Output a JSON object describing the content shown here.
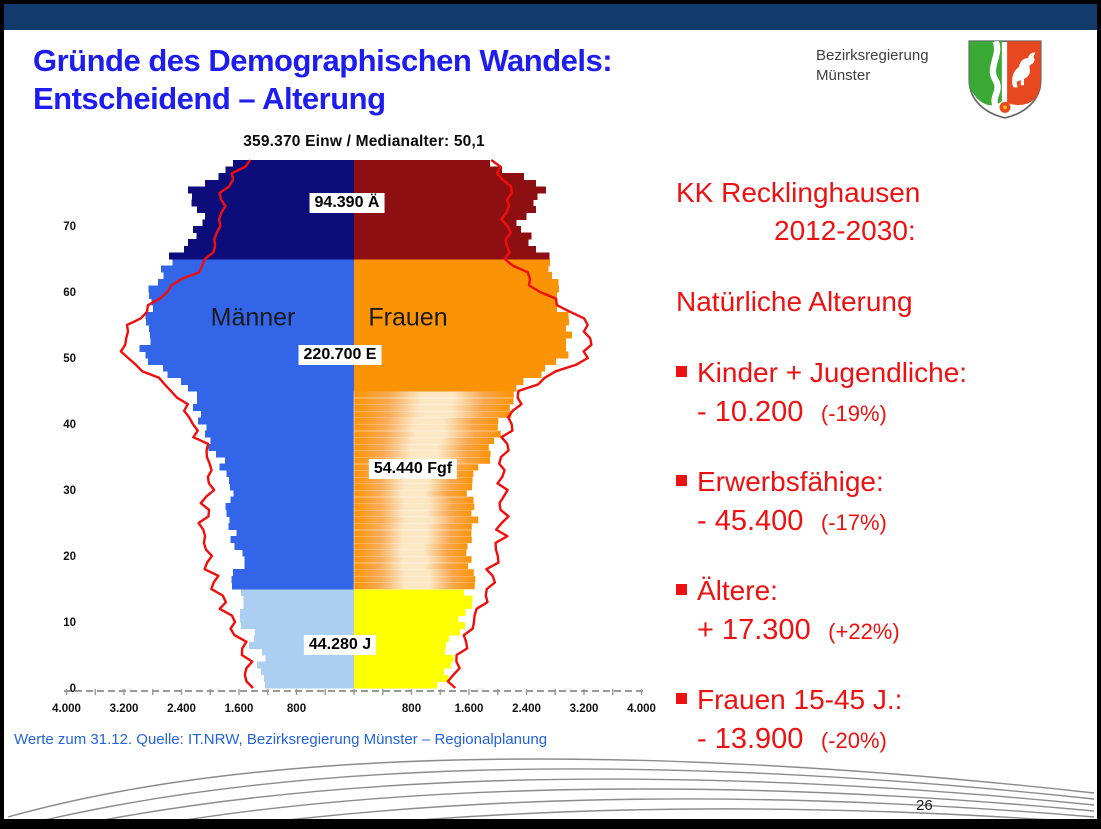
{
  "slide": {
    "title_line1": "Gründe des Demographischen Wandels:",
    "title_line2": "Entscheidend – Alterung",
    "brand": {
      "line1": "Bezirksregierung",
      "line2": "Münster"
    },
    "source_note": "Werte zum 31.12. Quelle: IT.NRW, Bezirksregierung Münster – Regionalplanung",
    "page_number": "26"
  },
  "right_panel": {
    "heading_line1": "KK Recklinghausen",
    "heading_line2": "2012-2030:",
    "subheading": "Natürliche Alterung",
    "bullets": [
      {
        "label": "Kinder + Jugendliche:",
        "value": "- 10.200",
        "pct": "(-19%)"
      },
      {
        "label": "Erwerbsfähige:",
        "value": "- 45.400",
        "pct": "(-17%)"
      },
      {
        "label": "Ältere:",
        "value": "+ 17.300",
        "pct": "(+22%)"
      },
      {
        "label": "Frauen 15-45 J.:",
        "value": "-  13.900",
        "pct": "(-20%)"
      }
    ]
  },
  "chart_data": {
    "type": "population-pyramid",
    "title": "359.370 Einw  /  Medianalter: 50,1",
    "left_label": "Männer",
    "right_label": "Frauen",
    "age_axis": {
      "min": 0,
      "max": 80,
      "ticks": [
        "0",
        "10",
        "20",
        "30",
        "40",
        "50",
        "60",
        "70"
      ]
    },
    "x_axis": {
      "max_per_side": 4000,
      "tick_step": 800,
      "tick_labels_left": [
        "4.000",
        "3.200",
        "2.400",
        "1.600",
        "800"
      ],
      "tick_labels_right": [
        "800",
        "1.600",
        "2.400",
        "3.200",
        "4.000"
      ]
    },
    "segments": {
      "young": {
        "label": "44.280 J",
        "age_range": [
          0,
          15
        ]
      },
      "working": {
        "label": "220.700 E",
        "age_range": [
          15,
          65
        ]
      },
      "fertile_women": {
        "label": "54.440 Fgf",
        "age_range": [
          15,
          45
        ]
      },
      "older": {
        "label": "94.390 Ä",
        "age_range": [
          65,
          80
        ]
      }
    },
    "series_2012_anchors": {
      "ages": [
        0,
        5,
        10,
        15,
        20,
        25,
        30,
        35,
        40,
        45,
        50,
        55,
        60,
        65,
        70,
        75,
        80
      ],
      "male": [
        1220,
        1330,
        1540,
        1660,
        1570,
        1770,
        1710,
        1900,
        2150,
        2250,
        2950,
        2880,
        2780,
        2500,
        2100,
        2250,
        1520
      ],
      "female": [
        1200,
        1320,
        1530,
        1640,
        1600,
        1670,
        1640,
        1880,
        2100,
        2300,
        2990,
        2920,
        2800,
        2650,
        2300,
        2700,
        1700
      ]
    },
    "projection_2030_anchors": {
      "ages": [
        0,
        5,
        10,
        15,
        20,
        25,
        30,
        35,
        40,
        45,
        50,
        55,
        60,
        65,
        70,
        75,
        80
      ],
      "male": [
        1450,
        1500,
        1700,
        1900,
        2070,
        2100,
        2030,
        2010,
        2250,
        2500,
        3230,
        3140,
        2600,
        2000,
        1880,
        1850,
        1450
      ],
      "female": [
        1360,
        1450,
        1640,
        1850,
        2000,
        2060,
        2100,
        2050,
        2160,
        2350,
        3250,
        3230,
        2615,
        2150,
        2100,
        2180,
        1960
      ]
    }
  },
  "colors": {
    "title_blue": "#1d1df2",
    "heading_red": "#ef1111",
    "band_navy": "#123a6d",
    "brand_gray": "#3f3f3f",
    "source_blue": "#2264dc",
    "male_young": "#aacff1",
    "male_adult": "#3365e8",
    "male_old": "#0c0c7a",
    "female_young": "#feff00",
    "female_adult": "#fb9307",
    "female_old": "#8e0f12",
    "fgf_light": "#fce7c4",
    "line_red": "#f20d0d",
    "arc_gray": "#8b8b8b",
    "shield_green": "#3aa935",
    "shield_red": "#e7481f"
  }
}
